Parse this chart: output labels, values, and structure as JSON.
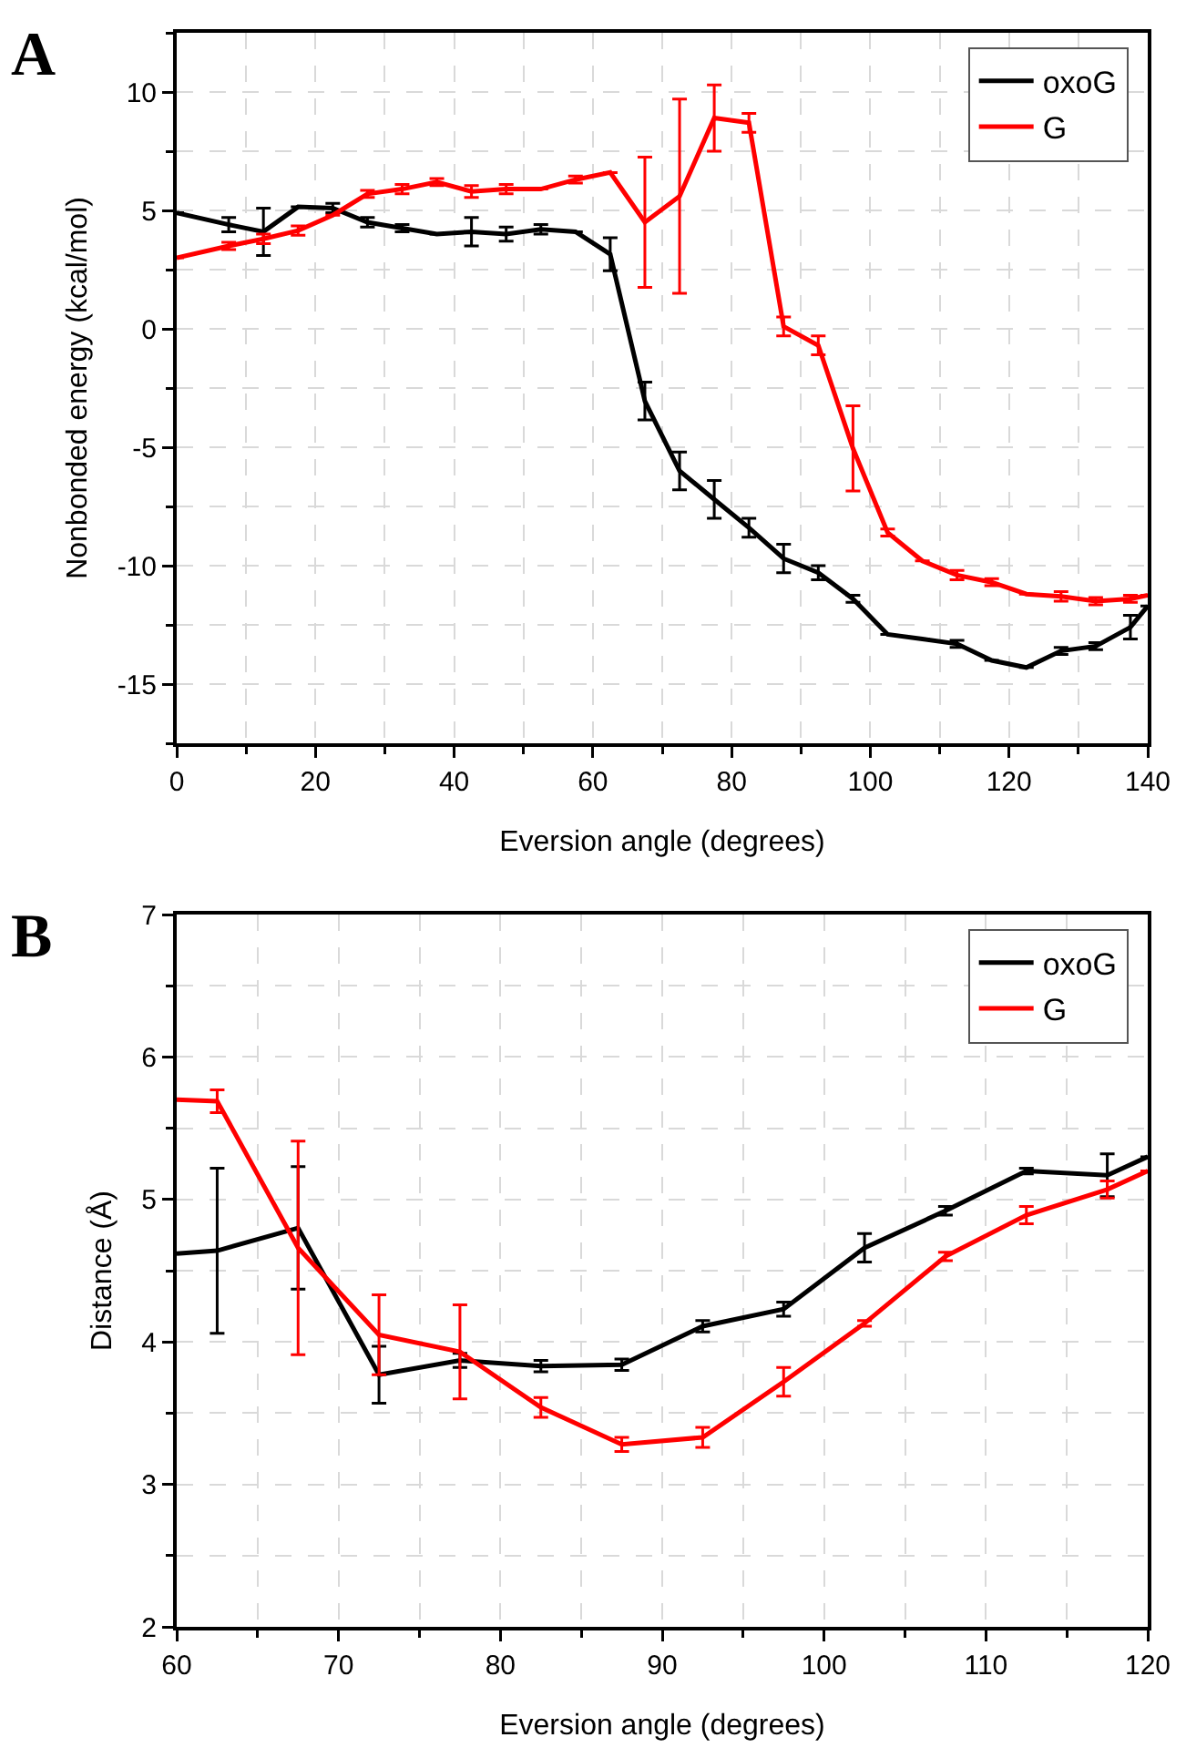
{
  "chart_data": [
    {
      "type": "line",
      "xlabel": "Eversion angle (degrees)",
      "ylabel": "Nonbonded energy (kcal/mol)",
      "annotations": [
        "A"
      ],
      "x": [
        0,
        7.5,
        12.5,
        17.5,
        22.5,
        27.5,
        32.5,
        37.5,
        42.5,
        47.5,
        52.5,
        57.5,
        62.5,
        67.5,
        72.5,
        77.5,
        82.5,
        87.5,
        92.5,
        97.5,
        102.5,
        107.5,
        112.5,
        117.5,
        122.5,
        127.5,
        132.5,
        137.5,
        140
      ],
      "series": [
        {
          "name": "oxoG",
          "color": "#000000",
          "values": [
            4.9,
            4.4,
            4.1,
            5.15,
            5.1,
            4.5,
            4.25,
            4.0,
            4.1,
            4.0,
            4.2,
            4.1,
            3.15,
            -3.05,
            -6.0,
            -7.2,
            -8.4,
            -9.7,
            -10.3,
            -11.4,
            -12.9,
            -13.1,
            -13.3,
            -14.0,
            -14.3,
            -13.6,
            -13.4,
            -12.6,
            -11.7
          ],
          "errors": [
            null,
            0.3,
            1,
            null,
            0.2,
            0.2,
            0.15,
            null,
            0.6,
            0.3,
            0.2,
            null,
            0.7,
            0.8,
            0.8,
            0.8,
            0.4,
            0.6,
            0.3,
            0.15,
            null,
            null,
            0.15,
            null,
            null,
            0.15,
            0.15,
            0.5,
            null
          ]
        },
        {
          "name": "G",
          "color": "#ff0000",
          "values": [
            3.0,
            3.5,
            3.8,
            4.15,
            4.8,
            5.7,
            5.9,
            6.2,
            5.8,
            5.9,
            5.9,
            6.3,
            6.6,
            4.5,
            5.6,
            8.9,
            8.7,
            0.1,
            -0.7,
            -5.05,
            -8.6,
            -9.8,
            -10.4,
            -10.7,
            -11.2,
            -11.3,
            -11.5,
            -11.4,
            -11.25
          ],
          "errors": [
            null,
            0.15,
            0.2,
            0.2,
            null,
            0.15,
            0.2,
            0.15,
            0.25,
            0.2,
            null,
            0.15,
            null,
            2.75,
            4.1,
            1.4,
            0.4,
            0.4,
            0.4,
            1.8,
            0.15,
            null,
            0.2,
            0.15,
            null,
            0.2,
            0.15,
            0.15,
            null
          ]
        }
      ],
      "xlim": [
        0,
        140
      ],
      "xticks": [
        0,
        20,
        40,
        60,
        80,
        100,
        120,
        140
      ],
      "ylim": [
        -17.5,
        12.5
      ],
      "yticks": [
        -15,
        -10,
        -5,
        0,
        5,
        10
      ],
      "grid": true,
      "legend": "top right",
      "marker": "none",
      "line_style": "solid"
    },
    {
      "type": "line",
      "xlabel": "Eversion angle (degrees)",
      "ylabel": "Distance (Å)",
      "annotations": [
        "B"
      ],
      "x": [
        60,
        62.5,
        67.5,
        72.5,
        77.5,
        82.5,
        87.5,
        92.5,
        97.5,
        102.5,
        107.5,
        112.5,
        117.5,
        120
      ],
      "series": [
        {
          "name": "oxoG",
          "color": "#000000",
          "values": [
            4.62,
            4.64,
            4.8,
            3.77,
            3.87,
            3.83,
            3.84,
            4.11,
            4.23,
            4.66,
            4.92,
            5.2,
            5.17,
            5.3
          ],
          "errors": [
            null,
            0.58,
            0.43,
            0.2,
            0.05,
            0.04,
            0.04,
            0.04,
            0.05,
            0.1,
            0.03,
            0.02,
            0.15,
            null
          ]
        },
        {
          "name": "G",
          "color": "#ff0000",
          "values": [
            5.7,
            5.69,
            4.66,
            4.05,
            3.93,
            3.54,
            3.28,
            3.33,
            3.72,
            4.13,
            4.6,
            4.89,
            5.07,
            5.2
          ],
          "errors": [
            null,
            0.08,
            0.75,
            0.28,
            0.33,
            0.07,
            0.05,
            0.07,
            0.1,
            0.02,
            0.03,
            0.06,
            0.06,
            null
          ]
        }
      ],
      "xlim": [
        60,
        120
      ],
      "xticks": [
        60,
        70,
        80,
        90,
        100,
        110,
        120
      ],
      "ylim": [
        2,
        7
      ],
      "yticks": [
        2,
        3,
        4,
        5,
        6,
        7
      ],
      "grid": true,
      "legend": "top right",
      "marker": "none",
      "line_style": "solid"
    }
  ]
}
